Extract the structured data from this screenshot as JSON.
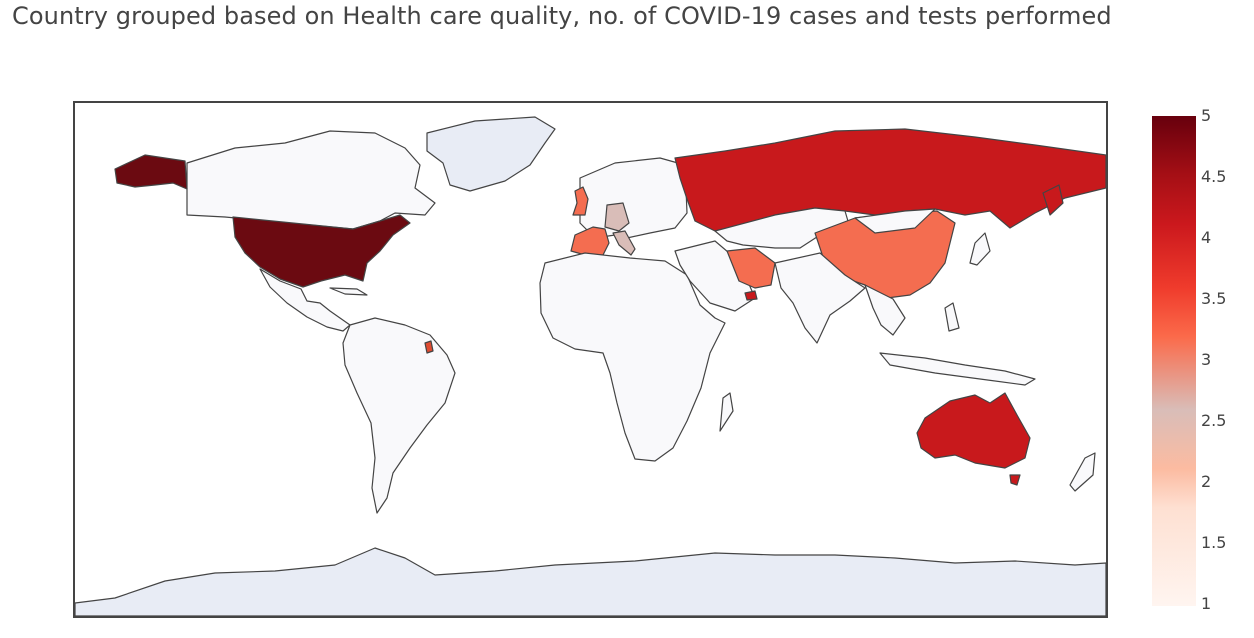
{
  "title": "Country grouped based on Health care quality, no. of COVID-19 cases and tests performed",
  "colorscale": {
    "name": "Reds",
    "min": 1,
    "max": 5,
    "ticks": [
      "1",
      "1.5",
      "2",
      "2.5",
      "3",
      "3.5",
      "4",
      "4.5",
      "5"
    ],
    "colors": {
      "level1": "#f5f6fa",
      "level2": "#d9bdb8",
      "level3": "#f46d50",
      "level4": "#c8191c",
      "level5": "#6b0a11"
    }
  },
  "chart_data": {
    "type": "choropleth",
    "title": "Country grouped based on Health care quality, no. of COVID-19 cases and tests performed",
    "value_range": [
      1,
      5
    ],
    "groups": [
      {
        "value": 5,
        "countries": [
          "United States"
        ]
      },
      {
        "value": 4,
        "countries": [
          "Russia",
          "Australia",
          "United Arab Emirates",
          "French Guiana"
        ]
      },
      {
        "value": 3,
        "countries": [
          "China",
          "Iran",
          "France",
          "United Kingdom"
        ]
      },
      {
        "value": 2,
        "countries": [
          "Germany",
          "Italy"
        ]
      },
      {
        "value": 1,
        "countries": [
          "All other countries"
        ]
      }
    ]
  }
}
